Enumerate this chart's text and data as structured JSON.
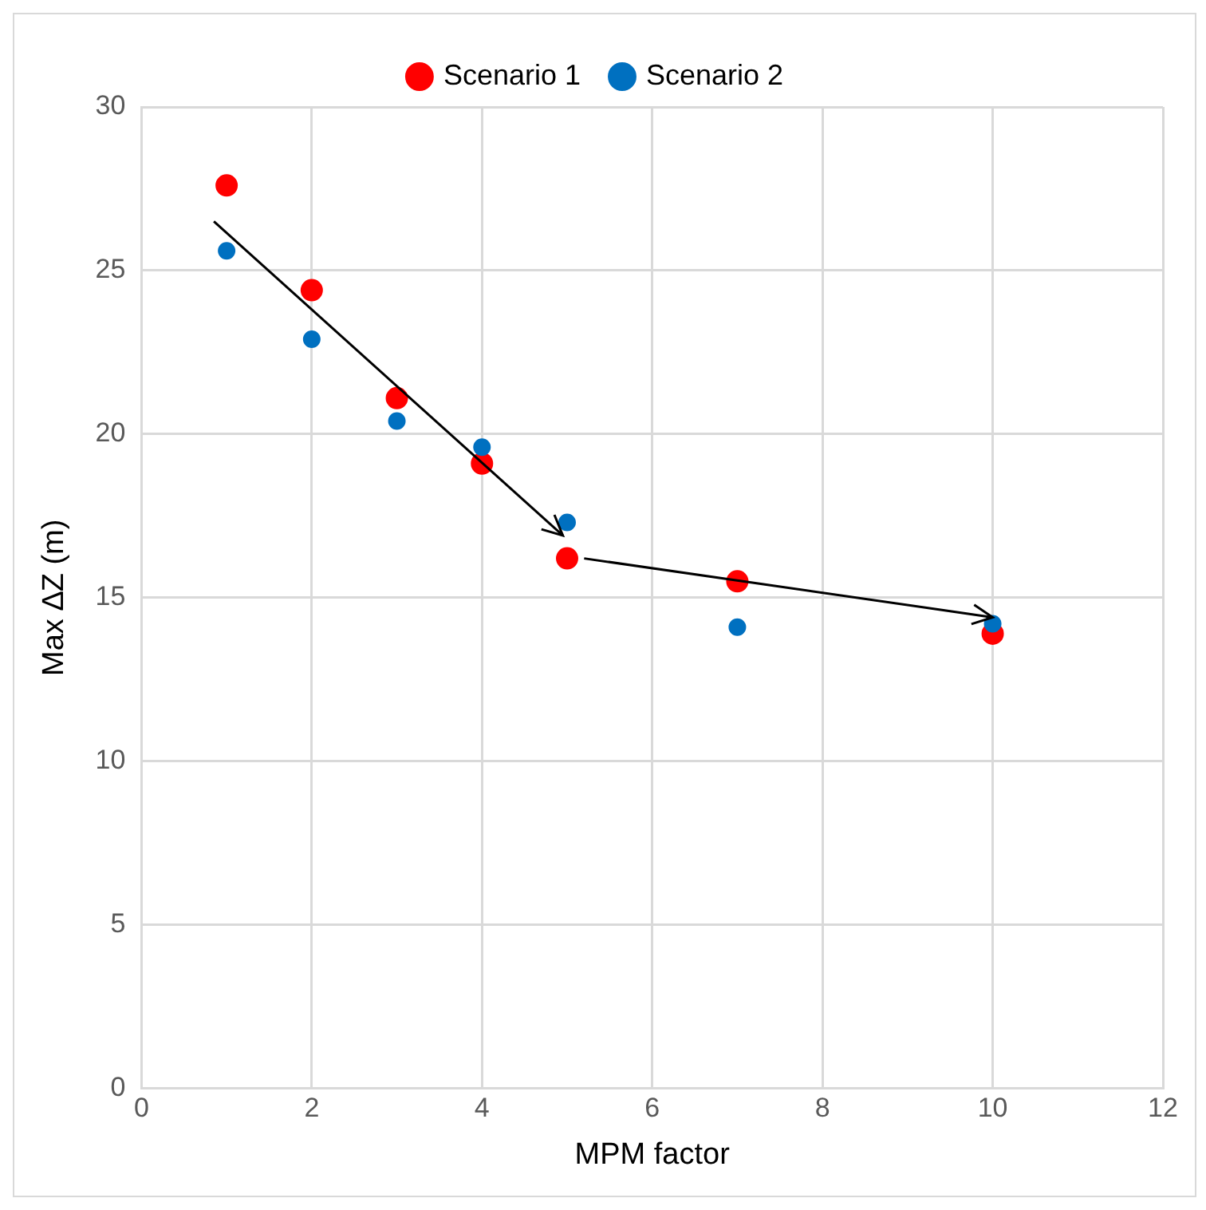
{
  "chart_data": {
    "type": "scatter",
    "xlabel": "MPM factor",
    "ylabel": "Max ∆Z (m)",
    "series": [
      {
        "name": "Scenario 1",
        "color": "#ff0000",
        "x": [
          1,
          2,
          3,
          4,
          5,
          7,
          10
        ],
        "values": [
          27.6,
          24.4,
          21.1,
          19.1,
          16.2,
          15.5,
          13.9
        ]
      },
      {
        "name": "Scenario 2",
        "color": "#0070c0",
        "x": [
          1,
          2,
          3,
          4,
          5,
          7,
          10
        ],
        "values": [
          25.6,
          22.9,
          20.4,
          19.6,
          17.3,
          14.1,
          14.2
        ]
      }
    ],
    "xlim": [
      0,
      12
    ],
    "xticks": [
      0,
      2,
      4,
      6,
      8,
      10,
      12
    ],
    "ylim": [
      0,
      30
    ],
    "yticks": [
      0,
      5,
      10,
      15,
      20,
      25,
      30
    ],
    "grid": true,
    "legend": "top",
    "marker": "circle"
  }
}
